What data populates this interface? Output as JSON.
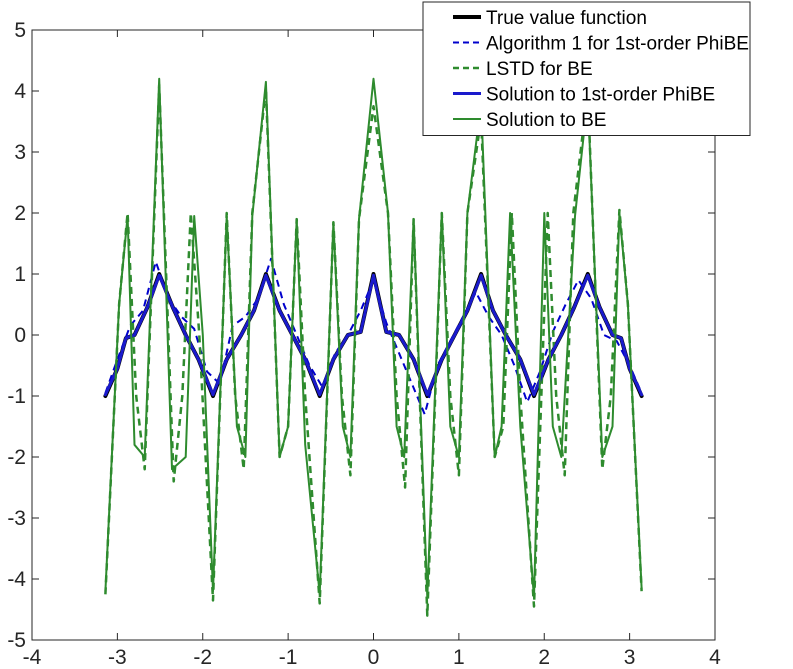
{
  "chart_data": {
    "type": "line",
    "title": "",
    "xlabel": "",
    "ylabel": "",
    "xlim": [
      -4,
      4
    ],
    "ylim": [
      -5,
      5
    ],
    "xticks": [
      -4,
      -3,
      -2,
      -1,
      0,
      1,
      2,
      3,
      4
    ],
    "yticks": [
      -5,
      -4,
      -3,
      -2,
      -1,
      0,
      1,
      2,
      3,
      4,
      5
    ],
    "xtick_labels": [
      "-4",
      "-3",
      "-2",
      "-1",
      "0",
      "1",
      "2",
      "3",
      "4"
    ],
    "ytick_labels": [
      "-5",
      "-4",
      "-3",
      "-2",
      "-1",
      "0",
      "1",
      "2",
      "3",
      "4",
      "5"
    ],
    "grid": false,
    "legend_position": "top-right",
    "series": [
      {
        "name": "True value function",
        "color": "#000000",
        "style": "solid",
        "x": [
          -3.14,
          -3.0,
          -2.9,
          -2.8,
          -2.65,
          -2.51,
          -2.35,
          -2.2,
          -2.05,
          -1.88,
          -1.72,
          -1.55,
          -1.4,
          -1.26,
          -1.1,
          -0.95,
          -0.8,
          -0.63,
          -0.47,
          -0.3,
          -0.15,
          0.0,
          0.15,
          0.3,
          0.47,
          0.63,
          0.8,
          0.95,
          1.1,
          1.26,
          1.4,
          1.55,
          1.72,
          1.88,
          2.05,
          2.2,
          2.35,
          2.51,
          2.65,
          2.8,
          2.9,
          3.0,
          3.14
        ],
        "y": [
          -1.0,
          -0.55,
          -0.05,
          0.0,
          0.45,
          1.0,
          0.45,
          0.0,
          -0.4,
          -1.0,
          -0.4,
          0.0,
          0.4,
          1.0,
          0.4,
          0.0,
          -0.4,
          -1.0,
          -0.4,
          0.0,
          0.05,
          1.0,
          0.05,
          0.0,
          -0.4,
          -1.0,
          -0.4,
          0.0,
          0.4,
          1.0,
          0.4,
          0.0,
          -0.4,
          -1.0,
          -0.4,
          0.0,
          0.45,
          1.0,
          0.45,
          0.0,
          -0.05,
          -0.55,
          -1.0
        ]
      },
      {
        "name": "Algorithm 1 for 1st-order PhiBE",
        "color": "#0000cc",
        "style": "dashed",
        "x": [
          -3.14,
          -3.0,
          -2.85,
          -2.7,
          -2.55,
          -2.4,
          -2.25,
          -2.1,
          -1.95,
          -1.8,
          -1.65,
          -1.5,
          -1.35,
          -1.2,
          -1.05,
          -0.9,
          -0.75,
          -0.6,
          -0.45,
          -0.3,
          -0.15,
          0.0,
          0.15,
          0.3,
          0.45,
          0.6,
          0.75,
          0.9,
          1.05,
          1.2,
          1.35,
          1.5,
          1.65,
          1.8,
          1.95,
          2.1,
          2.25,
          2.4,
          2.55,
          2.7,
          2.85,
          3.0,
          3.14
        ],
        "y": [
          -0.95,
          -0.4,
          0.15,
          0.4,
          1.2,
          0.6,
          0.3,
          0.1,
          -0.6,
          -0.8,
          0.15,
          0.3,
          0.6,
          1.25,
          0.5,
          0.0,
          -0.5,
          -0.85,
          -0.3,
          0.0,
          0.4,
          0.9,
          0.2,
          -0.3,
          -0.8,
          -1.3,
          -0.5,
          -0.1,
          0.3,
          0.7,
          0.3,
          0.0,
          -0.5,
          -1.1,
          -0.6,
          0.05,
          0.5,
          0.9,
          0.6,
          0.0,
          -0.1,
          -0.5,
          -0.95
        ]
      },
      {
        "name": "LSTD for BE",
        "color": "#2e8b2e",
        "style": "dashed",
        "x": [
          -3.14,
          -2.98,
          -2.88,
          -2.78,
          -2.68,
          -2.51,
          -2.34,
          -2.24,
          -2.14,
          -2.04,
          -1.88,
          -1.72,
          -1.62,
          -1.52,
          -1.42,
          -1.26,
          -1.1,
          -1.0,
          -0.9,
          -0.8,
          -0.63,
          -0.47,
          -0.37,
          -0.27,
          -0.17,
          0.0,
          0.17,
          0.27,
          0.37,
          0.47,
          0.63,
          0.8,
          0.9,
          1.0,
          1.1,
          1.26,
          1.42,
          1.52,
          1.62,
          1.72,
          1.88,
          2.04,
          2.14,
          2.24,
          2.34,
          2.51,
          2.68,
          2.78,
          2.88,
          2.98,
          3.14
        ],
        "y": [
          -4.25,
          0.5,
          2.0,
          -1.0,
          -2.2,
          4.1,
          -2.4,
          -1.0,
          2.0,
          0.0,
          -4.35,
          2.0,
          -1.0,
          -2.2,
          2.0,
          4.05,
          -2.0,
          -1.5,
          1.9,
          -1.0,
          -4.4,
          1.85,
          -1.0,
          -2.3,
          1.9,
          3.75,
          2.0,
          -1.0,
          -2.5,
          1.9,
          -4.6,
          2.0,
          -1.0,
          -2.3,
          2.0,
          3.55,
          -2.0,
          -1.5,
          2.0,
          -1.0,
          -4.45,
          2.0,
          -1.0,
          -2.3,
          2.0,
          4.0,
          -2.2,
          -1.0,
          2.05,
          0.5,
          -4.2
        ]
      },
      {
        "name": "Solution to 1st-order PhiBE",
        "color": "#1a1acc",
        "style": "solid",
        "x": [
          -3.14,
          -3.0,
          -2.9,
          -2.8,
          -2.65,
          -2.51,
          -2.35,
          -2.2,
          -2.05,
          -1.88,
          -1.72,
          -1.55,
          -1.4,
          -1.26,
          -1.1,
          -0.95,
          -0.8,
          -0.63,
          -0.47,
          -0.3,
          -0.15,
          0.0,
          0.15,
          0.3,
          0.47,
          0.63,
          0.8,
          0.95,
          1.1,
          1.26,
          1.4,
          1.55,
          1.72,
          1.88,
          2.05,
          2.2,
          2.35,
          2.51,
          2.65,
          2.8,
          2.9,
          3.0,
          3.14
        ],
        "y": [
          -0.98,
          -0.55,
          -0.05,
          0.0,
          0.45,
          0.98,
          0.45,
          0.0,
          -0.4,
          -0.98,
          -0.4,
          0.0,
          0.4,
          0.98,
          0.4,
          0.0,
          -0.4,
          -0.98,
          -0.4,
          0.0,
          0.05,
          0.98,
          0.05,
          0.0,
          -0.4,
          -0.98,
          -0.4,
          0.0,
          0.4,
          0.98,
          0.4,
          0.0,
          -0.4,
          -0.98,
          -0.4,
          0.0,
          0.45,
          0.98,
          0.45,
          0.0,
          -0.05,
          -0.55,
          -0.98
        ]
      },
      {
        "name": "Solution to BE",
        "color": "#2e8b2e",
        "style": "solid",
        "x": [
          -3.14,
          -2.98,
          -2.88,
          -2.8,
          -2.68,
          -2.51,
          -2.36,
          -2.2,
          -2.1,
          -2.0,
          -1.88,
          -1.72,
          -1.6,
          -1.5,
          -1.42,
          -1.26,
          -1.1,
          -1.0,
          -0.9,
          -0.8,
          -0.63,
          -0.47,
          -0.36,
          -0.27,
          -0.17,
          0.0,
          0.17,
          0.27,
          0.36,
          0.47,
          0.63,
          0.8,
          0.9,
          1.0,
          1.1,
          1.26,
          1.42,
          1.5,
          1.6,
          1.72,
          1.88,
          2.0,
          2.1,
          2.2,
          2.36,
          2.51,
          2.68,
          2.8,
          2.88,
          2.98,
          3.14
        ],
        "y": [
          -4.2,
          0.5,
          1.95,
          -1.8,
          -2.0,
          4.2,
          -2.2,
          -2.0,
          1.95,
          0.0,
          -4.2,
          1.95,
          -1.5,
          -2.0,
          1.95,
          4.15,
          -2.0,
          -1.5,
          1.9,
          -1.8,
          -4.25,
          1.85,
          -1.5,
          -2.0,
          1.9,
          4.2,
          2.0,
          -1.5,
          -2.0,
          1.9,
          -4.3,
          2.0,
          -1.5,
          -2.0,
          2.0,
          3.8,
          -2.0,
          -1.5,
          2.0,
          -1.5,
          -4.3,
          2.0,
          -1.5,
          -2.0,
          1.95,
          3.9,
          -2.0,
          -1.5,
          2.0,
          0.5,
          -4.15
        ]
      }
    ]
  }
}
